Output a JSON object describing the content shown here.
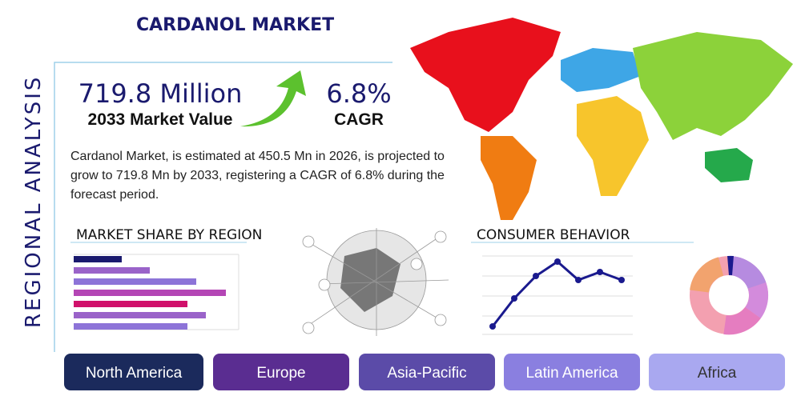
{
  "header": {
    "title": "CARDANOL MARKET",
    "side_label": "REGIONAL ANALYSIS"
  },
  "stats": {
    "value": "719.8 Million",
    "value_caption": "2033 Market Value",
    "cagr": "6.8%",
    "cagr_caption": "CAGR"
  },
  "description": "Cardanol Market, is estimated at 450.5 Mn in 2026, is projected to grow to 719.8 Mn by 2033, registering a CAGR of 6.8% during the forecast period.",
  "sections": {
    "share": "MARKET SHARE BY REGION",
    "behavior": "CONSUMER BEHAVIOR"
  },
  "regions": [
    "North America",
    "Europe",
    "Asia-Pacific",
    "Latin America",
    "Africa"
  ]
}
